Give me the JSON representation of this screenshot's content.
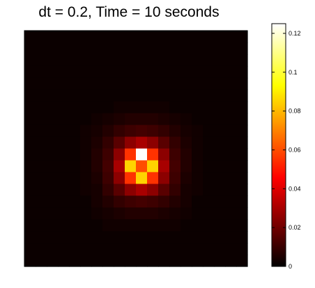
{
  "chart_data": {
    "type": "heatmap",
    "title": "dt = 0.2, Time = 10 seconds",
    "colormap": "hot",
    "grid": false,
    "colorbar": {
      "position": "right",
      "range": [
        0,
        0.125
      ],
      "ticks": [
        0,
        0.02,
        0.04,
        0.06,
        0.08,
        0.1,
        0.12
      ],
      "tick_labels": [
        "0",
        "0.02",
        "0.04",
        "0.06",
        "0.08",
        "0.1",
        "0.12"
      ]
    },
    "rows": 20,
    "cols": 20,
    "peak_cell": {
      "row": 10,
      "col": 10,
      "value": 0.125
    },
    "values": [
      [
        0.002,
        0.002,
        0.002,
        0.002,
        0.002,
        0.002,
        0.002,
        0.002,
        0.002,
        0.002,
        0.002,
        0.002,
        0.002,
        0.002,
        0.002,
        0.002,
        0.002,
        0.002,
        0.002,
        0.002
      ],
      [
        0.002,
        0.002,
        0.002,
        0.002,
        0.002,
        0.002,
        0.002,
        0.002,
        0.002,
        0.002,
        0.002,
        0.002,
        0.002,
        0.002,
        0.002,
        0.002,
        0.002,
        0.002,
        0.002,
        0.002
      ],
      [
        0.002,
        0.002,
        0.002,
        0.002,
        0.002,
        0.002,
        0.002,
        0.002,
        0.002,
        0.002,
        0.002,
        0.002,
        0.002,
        0.002,
        0.002,
        0.002,
        0.002,
        0.002,
        0.002,
        0.002
      ],
      [
        0.002,
        0.002,
        0.002,
        0.002,
        0.002,
        0.002,
        0.002,
        0.002,
        0.002,
        0.002,
        0.002,
        0.002,
        0.002,
        0.002,
        0.002,
        0.002,
        0.002,
        0.002,
        0.002,
        0.002
      ],
      [
        0.002,
        0.002,
        0.002,
        0.002,
        0.002,
        0.002,
        0.002,
        0.002,
        0.002,
        0.002,
        0.002,
        0.002,
        0.002,
        0.002,
        0.002,
        0.002,
        0.002,
        0.002,
        0.002,
        0.002
      ],
      [
        0.002,
        0.002,
        0.002,
        0.002,
        0.002,
        0.002,
        0.002,
        0.002,
        0.002,
        0.002,
        0.002,
        0.002,
        0.002,
        0.002,
        0.002,
        0.002,
        0.002,
        0.002,
        0.002,
        0.002
      ],
      [
        0.002,
        0.002,
        0.002,
        0.002,
        0.002,
        0.002,
        0.002,
        0.002,
        0.003,
        0.003,
        0.003,
        0.003,
        0.003,
        0.002,
        0.002,
        0.002,
        0.002,
        0.002,
        0.002,
        0.002
      ],
      [
        0.002,
        0.002,
        0.002,
        0.002,
        0.002,
        0.002,
        0.003,
        0.004,
        0.005,
        0.006,
        0.006,
        0.006,
        0.005,
        0.004,
        0.003,
        0.002,
        0.002,
        0.002,
        0.002,
        0.002
      ],
      [
        0.002,
        0.002,
        0.002,
        0.002,
        0.002,
        0.003,
        0.004,
        0.006,
        0.009,
        0.011,
        0.012,
        0.011,
        0.009,
        0.006,
        0.004,
        0.003,
        0.002,
        0.002,
        0.002,
        0.002
      ],
      [
        0.002,
        0.002,
        0.002,
        0.002,
        0.002,
        0.003,
        0.005,
        0.009,
        0.016,
        0.025,
        0.03,
        0.025,
        0.016,
        0.009,
        0.005,
        0.003,
        0.002,
        0.002,
        0.002,
        0.002
      ],
      [
        0.002,
        0.002,
        0.002,
        0.002,
        0.002,
        0.003,
        0.006,
        0.011,
        0.025,
        0.055,
        0.125,
        0.055,
        0.025,
        0.011,
        0.006,
        0.003,
        0.002,
        0.002,
        0.002,
        0.002
      ],
      [
        0.002,
        0.002,
        0.002,
        0.002,
        0.002,
        0.003,
        0.006,
        0.012,
        0.03,
        0.085,
        0.06,
        0.085,
        0.03,
        0.012,
        0.006,
        0.003,
        0.002,
        0.002,
        0.002,
        0.002
      ],
      [
        0.002,
        0.002,
        0.002,
        0.002,
        0.002,
        0.003,
        0.005,
        0.011,
        0.025,
        0.055,
        0.085,
        0.055,
        0.025,
        0.011,
        0.005,
        0.003,
        0.002,
        0.002,
        0.002,
        0.002
      ],
      [
        0.002,
        0.002,
        0.002,
        0.002,
        0.002,
        0.003,
        0.004,
        0.009,
        0.016,
        0.025,
        0.03,
        0.025,
        0.016,
        0.009,
        0.004,
        0.003,
        0.002,
        0.002,
        0.002,
        0.002
      ],
      [
        0.002,
        0.002,
        0.002,
        0.002,
        0.002,
        0.002,
        0.004,
        0.006,
        0.009,
        0.011,
        0.012,
        0.011,
        0.009,
        0.006,
        0.004,
        0.002,
        0.002,
        0.002,
        0.002,
        0.002
      ],
      [
        0.002,
        0.002,
        0.002,
        0.002,
        0.002,
        0.002,
        0.003,
        0.004,
        0.005,
        0.006,
        0.006,
        0.006,
        0.005,
        0.004,
        0.003,
        0.002,
        0.002,
        0.002,
        0.002,
        0.002
      ],
      [
        0.002,
        0.002,
        0.002,
        0.002,
        0.002,
        0.002,
        0.002,
        0.003,
        0.003,
        0.003,
        0.003,
        0.003,
        0.003,
        0.003,
        0.002,
        0.002,
        0.002,
        0.002,
        0.002,
        0.002
      ],
      [
        0.002,
        0.002,
        0.002,
        0.002,
        0.002,
        0.002,
        0.002,
        0.002,
        0.002,
        0.002,
        0.002,
        0.002,
        0.002,
        0.002,
        0.002,
        0.002,
        0.002,
        0.002,
        0.002,
        0.002
      ],
      [
        0.002,
        0.002,
        0.002,
        0.002,
        0.002,
        0.002,
        0.002,
        0.002,
        0.002,
        0.002,
        0.002,
        0.002,
        0.002,
        0.002,
        0.002,
        0.002,
        0.002,
        0.002,
        0.002,
        0.002
      ],
      [
        0.002,
        0.002,
        0.002,
        0.002,
        0.002,
        0.002,
        0.002,
        0.002,
        0.002,
        0.002,
        0.002,
        0.002,
        0.002,
        0.002,
        0.002,
        0.002,
        0.002,
        0.002,
        0.002,
        0.002
      ]
    ]
  }
}
